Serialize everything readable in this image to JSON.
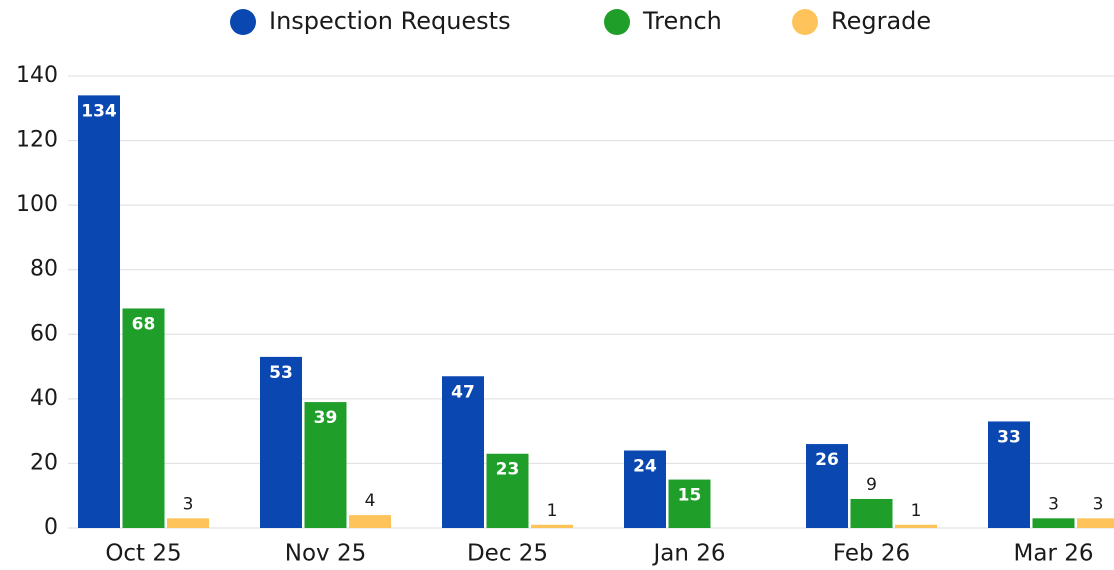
{
  "chart_data": {
    "type": "bar",
    "categories": [
      "Oct 25",
      "Nov 25",
      "Dec 25",
      "Jan 26",
      "Feb 26",
      "Mar 26"
    ],
    "series": [
      {
        "name": "Inspection Requests",
        "color": "#0a47b0",
        "values": [
          134,
          53,
          47,
          24,
          26,
          33
        ]
      },
      {
        "name": "Trench",
        "color": "#1f9e2a",
        "values": [
          68,
          39,
          23,
          15,
          9,
          3
        ]
      },
      {
        "name": "Regrade",
        "color": "#ffc35c",
        "values": [
          3,
          4,
          1,
          0,
          1,
          3
        ]
      }
    ],
    "ylim": [
      0,
      140
    ],
    "yticks": [
      0,
      20,
      40,
      60,
      80,
      100,
      120,
      140
    ],
    "grid": true,
    "legend": "top"
  }
}
